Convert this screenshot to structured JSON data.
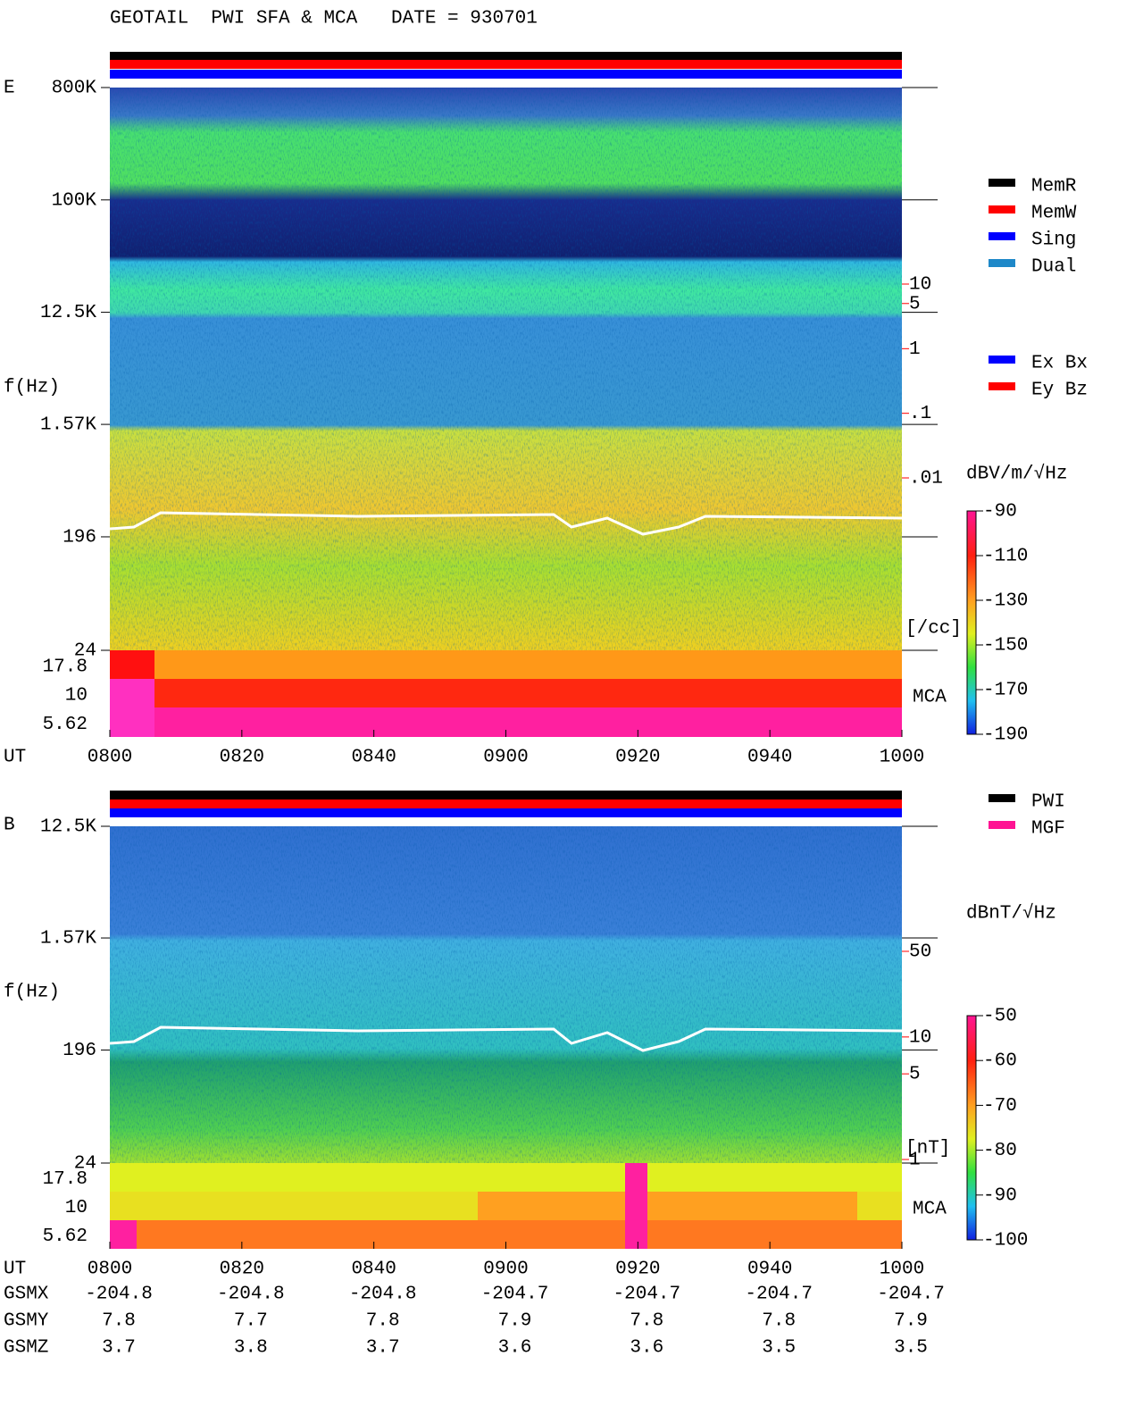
{
  "title": "GEOTAIL  PWI SFA & MCA   DATE = 930701",
  "chart_data": [
    {
      "type": "spectrogram",
      "panel_label": "E",
      "y_label": "f(Hz)",
      "x_label": "UT",
      "ylog": true,
      "ylim": [
        24,
        800000
      ],
      "yticks": [
        {
          "value": 800000,
          "label": "800K"
        },
        {
          "value": 100000,
          "label": "100K"
        },
        {
          "value": 12500,
          "label": "12.5K"
        },
        {
          "value": 1570,
          "label": "1.57K"
        },
        196,
        24
      ],
      "categories": [
        "0800",
        "0820",
        "0840",
        "0900",
        "0920",
        "0940",
        "1000"
      ],
      "mca_label": "MCA",
      "mca_channels": [
        17.8,
        10,
        5.62
      ],
      "side_axis": {
        "label": "[/cc]",
        "log": true,
        "lim": [
          0.01,
          10
        ],
        "color": "#ff0000",
        "ticks": [
          10,
          5,
          1,
          {
            "value": 0.1,
            "label": ".1"
          },
          {
            "value": 0.01,
            "label": ".01"
          }
        ]
      },
      "colorbar": {
        "label": "dBV/m/√Hz",
        "lim": [
          -190,
          -90
        ],
        "ticks": [
          -90,
          -110,
          -130,
          -150,
          -170,
          -190
        ]
      },
      "legends": [
        [
          {
            "name": "MemR",
            "color": "#000000"
          },
          {
            "name": "MemW",
            "color": "#ff0000"
          },
          {
            "name": "Sing",
            "color": "#0000ff"
          },
          {
            "name": "Dual",
            "color": "#1e88c8"
          }
        ],
        [
          {
            "name": "Ex Bx",
            "color": "#0000ff"
          },
          {
            "name": "Ey Bz",
            "color": "#ff0000"
          }
        ]
      ]
    },
    {
      "type": "spectrogram",
      "panel_label": "B",
      "y_label": "f(Hz)",
      "x_label": "UT",
      "ylog": true,
      "ylim": [
        24,
        12500
      ],
      "yticks": [
        {
          "value": 12500,
          "label": "12.5K"
        },
        {
          "value": 1570,
          "label": "1.57K"
        },
        196,
        24
      ],
      "categories": [
        "0800",
        "0820",
        "0840",
        "0900",
        "0920",
        "0940",
        "1000"
      ],
      "mca_label": "MCA",
      "mca_channels": [
        17.8,
        10,
        5.62
      ],
      "side_axis": {
        "label": "[nT]",
        "log": true,
        "lim": [
          1,
          50
        ],
        "color": "#ff0000",
        "ticks": [
          50,
          10,
          5,
          1
        ]
      },
      "colorbar": {
        "label": "dBnT/√Hz",
        "lim": [
          -100,
          -50
        ],
        "ticks": [
          -50,
          -60,
          -70,
          -80,
          -90,
          -100
        ]
      },
      "legends": [
        [
          {
            "name": "PWI",
            "color": "#000000"
          },
          {
            "name": "MGF",
            "color": "#ff1493"
          }
        ]
      ]
    }
  ],
  "orbit": {
    "rows": [
      {
        "name": "GSMX",
        "values": [
          -204.8,
          -204.8,
          -204.8,
          -204.7,
          -204.7,
          -204.7,
          -204.7
        ]
      },
      {
        "name": "GSMY",
        "values": [
          7.8,
          7.7,
          7.8,
          7.9,
          7.8,
          7.8,
          7.9
        ]
      },
      {
        "name": "GSMZ",
        "values": [
          3.7,
          3.8,
          3.7,
          3.6,
          3.6,
          3.5,
          3.5
        ]
      }
    ]
  }
}
